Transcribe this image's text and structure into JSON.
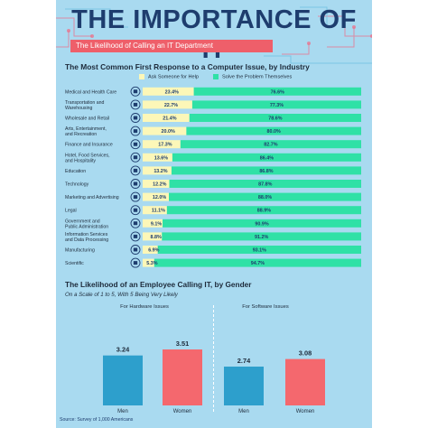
{
  "header": {
    "title": "THE IMPORTANCE OF IT",
    "subtitle": "The Likelihood of Calling an IT Department"
  },
  "source": "Source: Survey of 1,000 Americans",
  "colors": {
    "background": "#a9daf0",
    "navy": "#1e3d6e",
    "ask_bar": "#fcf7b8",
    "solve_bar": "#2fe1a6",
    "men_bar": "#2d9fcc",
    "women_bar": "#f4686e",
    "subtitle_bg": "#ee5f6a"
  },
  "chart_data": [
    {
      "type": "bar",
      "orientation": "horizontal-stacked",
      "title": "The Most Common First Response to a Computer Issue, by Industry",
      "legend_position": "top",
      "categories": [
        "Medical and Health Care",
        "Transportation and Warehousing",
        "Wholesale and Retail",
        "Arts, Entertainment, and Recreation",
        "Finance and Insurance",
        "Hotel, Food Services, and Hospitality",
        "Education",
        "Technology",
        "Marketing and Advertising",
        "Legal",
        "Government and Public Administration",
        "Information Services and Data Processing",
        "Manufacturing",
        "Scientific"
      ],
      "category_lines": [
        [
          "Medical and Health Care"
        ],
        [
          "Transportation and",
          "Warehousing"
        ],
        [
          "Wholesale and Retail"
        ],
        [
          "Arts, Entertainment,",
          "and Recreation"
        ],
        [
          "Finance and Insurance"
        ],
        [
          "Hotel, Food Services,",
          "and Hospitality"
        ],
        [
          "Education"
        ],
        [
          "Technology"
        ],
        [
          "Marketing and Advertising"
        ],
        [
          "Legal"
        ],
        [
          "Government and",
          "Public Administration"
        ],
        [
          "Information Services",
          "and Data Processing"
        ],
        [
          "Manufacturing"
        ],
        [
          "Scientific"
        ]
      ],
      "icons": [
        "medical-icon",
        "truck-icon",
        "cart-icon",
        "theater-icon",
        "dollar-icon",
        "bed-icon",
        "book-icon",
        "laptop-icon",
        "megaphone-icon",
        "gavel-icon",
        "government-icon",
        "server-icon",
        "factory-icon",
        "flask-icon"
      ],
      "series": [
        {
          "name": "Ask Someone for Help",
          "values": [
            23.4,
            22.7,
            21.4,
            20.0,
            17.3,
            13.6,
            13.2,
            12.2,
            12.0,
            11.1,
            9.1,
            8.8,
            6.9,
            5.3
          ]
        },
        {
          "name": "Solve the Problem Themselves",
          "values": [
            76.6,
            77.3,
            78.6,
            80.0,
            82.7,
            86.4,
            86.8,
            87.8,
            88.0,
            88.9,
            90.9,
            91.2,
            93.1,
            94.7
          ]
        }
      ],
      "labels": {
        "ask": [
          "23.4%",
          "22.7%",
          "21.4%",
          "20.0%",
          "17.3%",
          "13.6%",
          "13.2%",
          "12.2%",
          "12.0%",
          "11.1%",
          "9.1%",
          "8.8%",
          "6.9%",
          "5.3%"
        ],
        "solve": [
          "76.6%",
          "77.3%",
          "78.6%",
          "80.0%",
          "82.7%",
          "86.4%",
          "86.8%",
          "87.8%",
          "88.0%",
          "88.9%",
          "90.9%",
          "91.2%",
          "93.1%",
          "94.7%"
        ]
      },
      "xlim": [
        0,
        100
      ],
      "unit": "%"
    },
    {
      "type": "bar",
      "title": "The Likelihood of an Employee Calling IT, by Gender",
      "subtitle": "On a Scale of 1 to 5, With 5 Being Very Likely",
      "groups": [
        {
          "name": "For Hardware Issues",
          "categories": [
            "Men",
            "Women"
          ],
          "values": [
            3.24,
            3.51
          ],
          "labels": [
            "3.24",
            "3.51"
          ]
        },
        {
          "name": "For Software Issues",
          "categories": [
            "Men",
            "Women"
          ],
          "values": [
            2.74,
            3.08
          ],
          "labels": [
            "2.74",
            "3.08"
          ]
        }
      ],
      "ylim": [
        1,
        5
      ]
    }
  ]
}
